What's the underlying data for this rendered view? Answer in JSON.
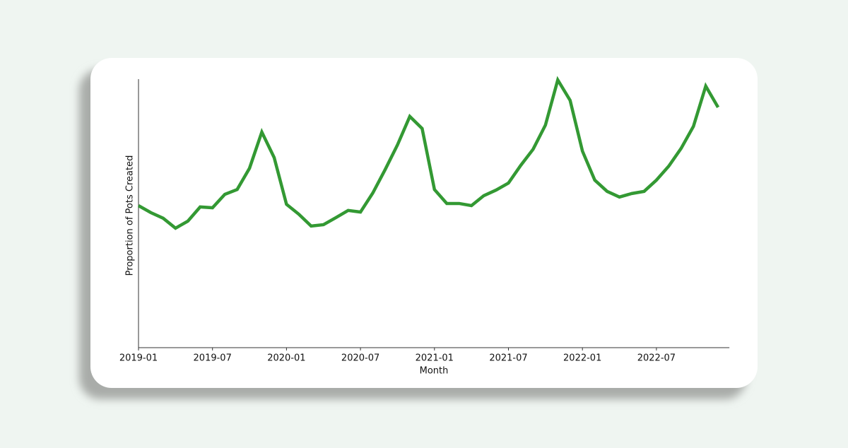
{
  "chart_data": {
    "type": "line",
    "x_label": "Month",
    "y_label": "Proportion of Pots Created",
    "x": [
      "2019-01",
      "2019-02",
      "2019-03",
      "2019-04",
      "2019-05",
      "2019-06",
      "2019-07",
      "2019-08",
      "2019-09",
      "2019-10",
      "2019-11",
      "2019-12",
      "2020-01",
      "2020-02",
      "2020-03",
      "2020-04",
      "2020-05",
      "2020-06",
      "2020-07",
      "2020-08",
      "2020-09",
      "2020-10",
      "2020-11",
      "2020-12",
      "2021-01",
      "2021-02",
      "2021-03",
      "2021-04",
      "2021-05",
      "2021-06",
      "2021-07",
      "2021-08",
      "2021-09",
      "2021-10",
      "2021-11",
      "2021-12",
      "2022-01",
      "2022-02",
      "2022-03",
      "2022-04",
      "2022-05",
      "2022-06",
      "2022-07",
      "2022-08",
      "2022-09",
      "2022-10",
      "2022-11",
      "2022-12"
    ],
    "series": [
      {
        "name": "Proportion of Pots Created",
        "color": "#339933",
        "values": [
          52.9,
          50.3,
          48.2,
          44.5,
          47.1,
          52.4,
          52.1,
          57.1,
          58.9,
          66.8,
          80.3,
          70.8,
          53.4,
          49.7,
          45.3,
          45.8,
          48.4,
          51.1,
          50.5,
          57.6,
          66.3,
          75.5,
          86.1,
          81.6,
          58.9,
          53.7,
          53.7,
          52.9,
          56.6,
          58.7,
          61.3,
          67.9,
          73.9,
          82.9,
          99.7,
          92.1,
          73.2,
          62.4,
          58.2,
          56.1,
          57.4,
          58.2,
          62.4,
          67.6,
          74.2,
          82.4,
          97.4,
          89.5
        ]
      }
    ],
    "xlim": [
      "2019-01",
      "2022-12"
    ],
    "xticks": [
      "2019-01",
      "2019-07",
      "2020-01",
      "2020-07",
      "2021-01",
      "2021-07",
      "2022-01",
      "2022-07"
    ],
    "ylim": [
      0,
      100
    ],
    "grid": false
  }
}
